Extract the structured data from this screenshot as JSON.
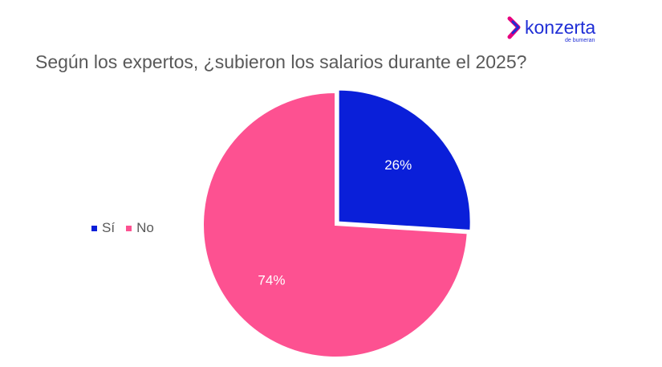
{
  "logo": {
    "text": "konzerta",
    "subtext": "de bumeran",
    "color": "#1f2ed6",
    "accent": "#e6007e"
  },
  "chart_data": {
    "type": "pie",
    "title": "Según los expertos, ¿subieron los salarios durante el 2025?",
    "categories": [
      "Sí",
      "No"
    ],
    "values": [
      26,
      74
    ],
    "labels": [
      "26%",
      "74%"
    ],
    "colors": [
      "#0a1fd9",
      "#fd5191"
    ],
    "legend_position": "left",
    "exploded_slice": "Sí"
  }
}
